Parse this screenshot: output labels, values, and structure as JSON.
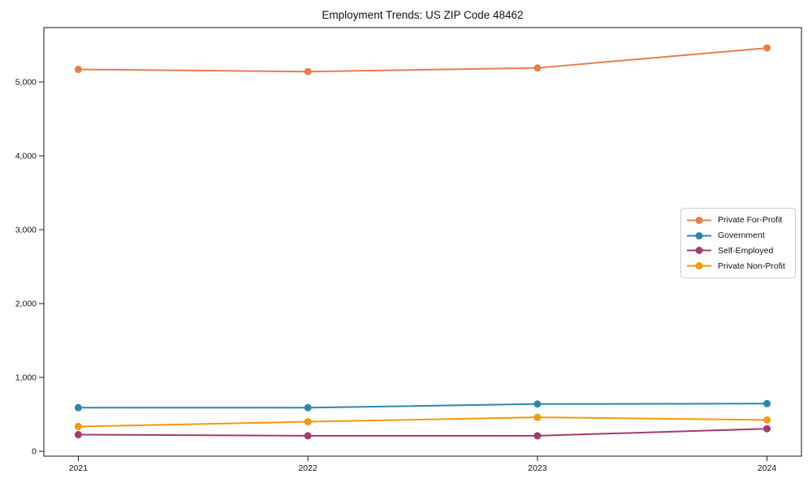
{
  "page": {
    "background": "#ffffff",
    "text_color": "#111111",
    "axis_color": "#1a1a1a"
  },
  "chart_data": {
    "type": "line",
    "title": "Employment Trends: US ZIP Code 48462",
    "xlabel": "",
    "ylabel": "",
    "grid": false,
    "legend_position": "center-right",
    "x": [
      2021,
      2022,
      2023,
      2024
    ],
    "x_tick_labels": [
      "2021",
      "2022",
      "2023",
      "2024"
    ],
    "xlim": [
      2020.85,
      2024.15
    ],
    "y_ticks": [
      0,
      1000,
      2000,
      3000,
      4000,
      5000
    ],
    "y_tick_labels": [
      "0",
      "1,000",
      "2,000",
      "3,000",
      "4,000",
      "5,000"
    ],
    "ylim": [
      -66,
      5736
    ],
    "series": [
      {
        "name": "Private For-Profit",
        "color": "#E87C4F",
        "values": [
          5170,
          5140,
          5190,
          5460
        ]
      },
      {
        "name": "Government",
        "color": "#2E86AB",
        "values": [
          590,
          590,
          640,
          645
        ]
      },
      {
        "name": "Self-Employed",
        "color": "#A23B72",
        "values": [
          225,
          210,
          210,
          305
        ]
      },
      {
        "name": "Private Non-Profit",
        "color": "#F5980B",
        "values": [
          335,
          400,
          460,
          425
        ]
      }
    ],
    "marker": "circle",
    "marker_radius": 4.5,
    "line_width": 2
  }
}
